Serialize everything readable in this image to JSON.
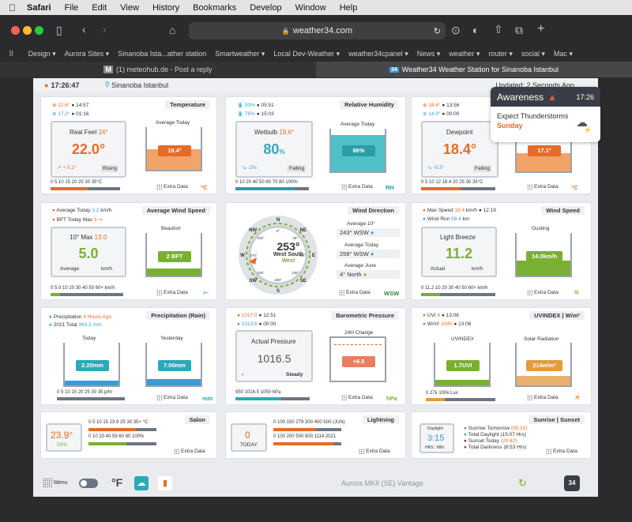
{
  "menubar": {
    "apple": "",
    "items": [
      "Safari",
      "File",
      "Edit",
      "View",
      "History",
      "Bookmarks",
      "Develop",
      "Window",
      "Help"
    ]
  },
  "browser": {
    "url": "weather34.com",
    "bookmarks": [
      "Design ▾",
      "Aurora Sites ▾",
      "Sinanoba Ista...ather station",
      "Smartweather ▾",
      "Local Dev-Weather ▾",
      "weather34cpanel ▾",
      "News ▾",
      "weather ▾",
      "router ▾",
      "social ▾",
      "Mac ▾"
    ],
    "tabs": [
      {
        "icon": "M",
        "label": "(1) meteohub.de - Post a reply"
      },
      {
        "icon": "34",
        "label": "Weather34 Weather Station for Sinanoba Istanbul"
      }
    ]
  },
  "header": {
    "time": "17:26:47",
    "station": "Sinanoba Istanbul",
    "updated": "Updated: 2 Seconds Ago"
  },
  "awareness": {
    "title": "Awareness",
    "time": "17:26",
    "forecast": "Expect Thunderstorms",
    "day": "Sunday"
  },
  "temperature": {
    "title": "Temperature",
    "max": "22.6°",
    "max_time": "14:57",
    "min": "17.2°",
    "min_time": "01:16",
    "realfeel_label": "Real Feel",
    "realfeel": "24°",
    "value": "22.0°",
    "trend": "+ 0.1°",
    "trend_label": "Rising",
    "avg_label": "Average Today",
    "avg": "19.4°",
    "scale": "0 5 10 15 20 25 30 35°C",
    "scale_hl": "22.0",
    "extra": "Extra Data",
    "unit": "°C",
    "tank_ticks": [
      "40",
      "35",
      "30",
      "25",
      "20",
      "15",
      "10",
      "5",
      "0"
    ],
    "fill": 0.49
  },
  "humidity": {
    "title": "Relative Humidity",
    "max": "93%",
    "max_time": "05:51",
    "min": "76%",
    "min_time": "15:03",
    "wetbulb_label": "Wetbulb",
    "wetbulb": "19.6°",
    "value": "80",
    "value_unit": "%",
    "trend": "-2%",
    "trend_label": "Falling",
    "avg_label": "Average Today",
    "avg": "86%",
    "scale": "0 10 20 40 50 60 70 80 100%",
    "extra": "Extra Data",
    "unit": "RH",
    "tank_ticks": [
      "100%",
      "90",
      "80",
      "70",
      "60",
      "50",
      "40",
      "30",
      "20",
      "10",
      "0"
    ],
    "fill": 0.86
  },
  "dewpoint": {
    "max": "18.4°",
    "max_time": "13:56",
    "min": "14.9°",
    "min_time": "00:00",
    "label": "Dewpoint",
    "value": "18.4°",
    "trend": "-0.3°",
    "trend_label": "Falling",
    "avg": "17.1°",
    "scale": "0 5 10 12 18.4 20 25 30 35°C",
    "extra": "Extra Data",
    "unit": "°C",
    "tank_ticks": [
      "40",
      "35",
      "30",
      "25",
      "20",
      "15",
      "10",
      "5",
      "0"
    ],
    "fill": 0.43
  },
  "wind": {
    "title": "Average Wind Speed",
    "avg_today": "Average Today",
    "avg_today_val": "3.2",
    "avg_unit": "km/h",
    "bft_label": "BFT Today Max",
    "bft_val": "3",
    "beaufort_label": "Beaufort",
    "max10_label": "10° Max",
    "max10": "13.0",
    "value": "5.0",
    "avg_label": "Average",
    "unit_label": "km/h",
    "bft_badge": "2 BFT",
    "scale": "0 5.0 10 20 30 40 50 60+ km/h",
    "extra": "Extra Data",
    "tank_ticks": [
      "12BFT",
      "10",
      "8",
      "6",
      "4",
      "2",
      "0"
    ],
    "fill": 0.17
  },
  "direction": {
    "title": "Wind Direction",
    "deg": "253°",
    "dir": "West South",
    "dir2": "West",
    "avg10_label": "Average 10°",
    "avg10": "243°",
    "avg10_dir": "WSW",
    "avgtoday_label": "Average Today",
    "avgtoday": "258°",
    "avgtoday_dir": "WSW",
    "avgjune_label": "Average June",
    "avgjune": "4°",
    "avgjune_dir": "North",
    "extra": "Extra Data",
    "unit": "WSW",
    "compass": [
      "N",
      "NE",
      "E",
      "SE",
      "S",
      "SW",
      "W",
      "NW"
    ],
    "degs": [
      "0°",
      "45°",
      "90°",
      "135°",
      "180°",
      "225°",
      "270°",
      "315°"
    ]
  },
  "gust": {
    "title": "Wind Speed",
    "max_label": "Max Speed",
    "max": "19.4",
    "max_unit": "km/h",
    "max_time": "12:19",
    "run_label": "Wind Run",
    "run": "56.4",
    "run_unit": "km",
    "breeze": "Light Breeze",
    "value": "11.2",
    "actual": "Actual",
    "unit_label": "km/h",
    "gust_label": "Gusting",
    "gust_badge": "14.0km/h",
    "scale": "0 11.2 10 20 30 40 50 60+ km/h",
    "extra": "Extra Data",
    "tank_ticks": [
      "40km/h",
      "35",
      "30",
      "25",
      "20",
      "15",
      "10",
      "5",
      "0"
    ],
    "fill": 0.35
  },
  "rain": {
    "title": "Precipitation (Rain)",
    "last_label": "Precipitation",
    "last": "4 Hours Ago",
    "total_label": "2021 Total",
    "total": "363.2 mm",
    "today_label": "Today",
    "today": "2.20mm",
    "yest_label": "Yesterday",
    "yest": "7.00mm",
    "scale": "0 5 10 15 20 25 30 35 p/hr",
    "extra": "Extra Data",
    "unit": "mm",
    "tank_ticks": [
      "40mm",
      "35",
      "30",
      "25",
      "20",
      "15",
      "10",
      "5",
      "0"
    ]
  },
  "pressure": {
    "title": "Barometric Pressure",
    "max": "1017.0",
    "max_time": "12:51",
    "min": "1013.6",
    "min_time": "00:00",
    "label": "Actual Pressure",
    "value": "1016.5",
    "trend_label": "Steady",
    "change_label": "24H Change",
    "change": "+6.5",
    "scale": "950 1016.5 1050 hPa",
    "extra": "Extra Data",
    "unit": "hPa",
    "tank_ticks": [
      "hPa",
      "10",
      "5",
      "0",
      "-5",
      "-10"
    ]
  },
  "uv": {
    "title": "UVINDEX | W/m²",
    "uvi_label": "UVI",
    "uvi_max": "8",
    "uvi_time": "13:06",
    "wm_label": "W/m²",
    "wm_max": "1040",
    "wm_time": "13:06",
    "uvindex_label": "UVINDEX",
    "uvi": "1.7UVI",
    "solar_label": "Solar Radiation",
    "solar": "214w/m²",
    "scale": "0 27k 100k Lux",
    "extra": "Extra Data",
    "tank_ticks": [
      "10",
      "9",
      "8",
      "7",
      "6",
      "5",
      "4",
      "3",
      "2",
      "1",
      "0"
    ],
    "solar_ticks": [
      "w/m²",
      "1100",
      "900",
      "700",
      "500",
      "300",
      "100",
      "0"
    ]
  },
  "salon": {
    "title": "Salon",
    "temp": "23.9°",
    "hum": "59%",
    "scale1": "0 5 10 15 23.9 25 30 35+ °C",
    "scale2": "0 10 20 40 59 60 80 100%",
    "extra": "Extra Data"
  },
  "lightning": {
    "title": "Lightning",
    "count": "0",
    "today": "TODAY",
    "scale1": "0 100 150 279 300 400 500 (JUN)",
    "scale2": "0 100 200 500 800 1114 2021",
    "extra": "Extra Data"
  },
  "sun": {
    "title": "Sunrise | Sunset",
    "daylight_label": "Daylight",
    "daylight": "3:15",
    "hrs": "HRS : MIN",
    "rise_label": "Sunrise Tomorrow",
    "rise": "(05:31)",
    "total_label": "Total Daylight",
    "total": "(15:07 Hrs)",
    "set_label": "Sunset Today",
    "set": "(20:42)",
    "dark_label": "Total Darkness",
    "dark": "(8:53 Hrs)",
    "extra": "Extra Data"
  },
  "footer": {
    "menu": "Menu",
    "unit": "°F",
    "station": "Aurora MKII (SE) Vantage",
    "logo": "34"
  }
}
